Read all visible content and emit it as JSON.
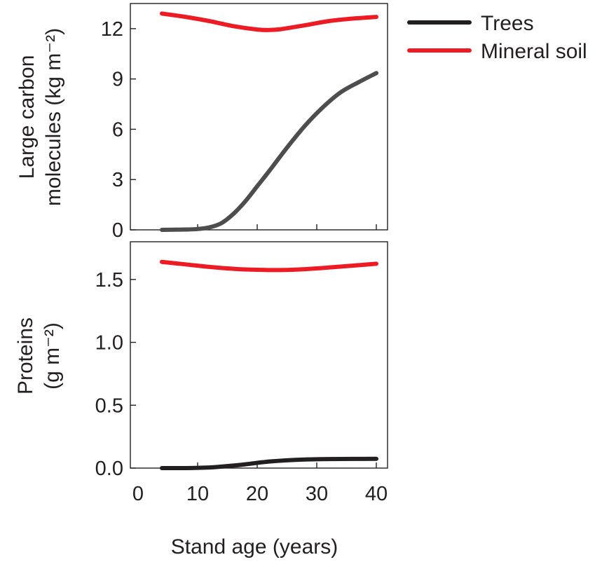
{
  "colors": {
    "trees": "#231f20",
    "trees_top_panel": "#4d4d4f",
    "mineral_soil": "#ed1c24",
    "axis": "#231f20"
  },
  "legend": {
    "position": "top-right",
    "items": [
      {
        "label": "Trees",
        "color": "#231f20"
      },
      {
        "label": "Mineral soil",
        "color": "#ed1c24"
      }
    ]
  },
  "x_axis": {
    "label": "Stand age (years)",
    "ticks": [
      "0",
      "10",
      "20",
      "30",
      "40"
    ]
  },
  "chart_data": [
    {
      "type": "line",
      "panel": "top",
      "ylabel_lines": [
        "Large carbon",
        "molecules (kg m⁻²)"
      ],
      "xlim": [
        0,
        40
      ],
      "ylim": [
        0,
        13.5
      ],
      "y_ticks": [
        0,
        3,
        6,
        9,
        12
      ],
      "y_tick_labels": [
        "0",
        "3",
        "6",
        "9",
        "12"
      ],
      "x_ticks": [
        0,
        10,
        20,
        30,
        40
      ],
      "series": [
        {
          "name": "Trees",
          "color": "#4d4d4f",
          "x": [
            4,
            8,
            10,
            12,
            14,
            16,
            18,
            20,
            22,
            25,
            28,
            31,
            34,
            37,
            40
          ],
          "y": [
            0.0,
            0.02,
            0.05,
            0.15,
            0.4,
            0.95,
            1.7,
            2.6,
            3.5,
            4.9,
            6.2,
            7.3,
            8.2,
            8.8,
            9.35
          ]
        },
        {
          "name": "Mineral soil",
          "color": "#ed1c24",
          "x": [
            4,
            8,
            12,
            16,
            20,
            22,
            24,
            28,
            32,
            36,
            40
          ],
          "y": [
            12.9,
            12.7,
            12.45,
            12.15,
            11.95,
            11.92,
            11.97,
            12.2,
            12.45,
            12.6,
            12.7
          ]
        }
      ]
    },
    {
      "type": "line",
      "panel": "bottom",
      "ylabel_lines": [
        "Proteins",
        "(g m⁻²)"
      ],
      "xlim": [
        0,
        40
      ],
      "ylim": [
        0,
        1.8
      ],
      "y_ticks": [
        0,
        0.5,
        1.0,
        1.5
      ],
      "y_tick_labels": [
        "0.0",
        "0.5",
        "1.0",
        "1.5"
      ],
      "x_ticks": [
        0,
        10,
        20,
        30,
        40
      ],
      "xlabel": "Stand age (years)",
      "series": [
        {
          "name": "Trees",
          "color": "#231f20",
          "x": [
            4,
            8,
            12,
            14,
            16,
            18,
            20,
            22,
            25,
            28,
            32,
            36,
            40
          ],
          "y": [
            0.0,
            0.0,
            0.005,
            0.012,
            0.02,
            0.03,
            0.042,
            0.052,
            0.062,
            0.068,
            0.072,
            0.073,
            0.074
          ]
        },
        {
          "name": "Mineral soil",
          "color": "#ed1c24",
          "x": [
            4,
            8,
            12,
            16,
            20,
            24,
            28,
            32,
            36,
            40
          ],
          "y": [
            1.64,
            1.62,
            1.6,
            1.585,
            1.577,
            1.575,
            1.582,
            1.595,
            1.61,
            1.625
          ]
        }
      ]
    }
  ]
}
